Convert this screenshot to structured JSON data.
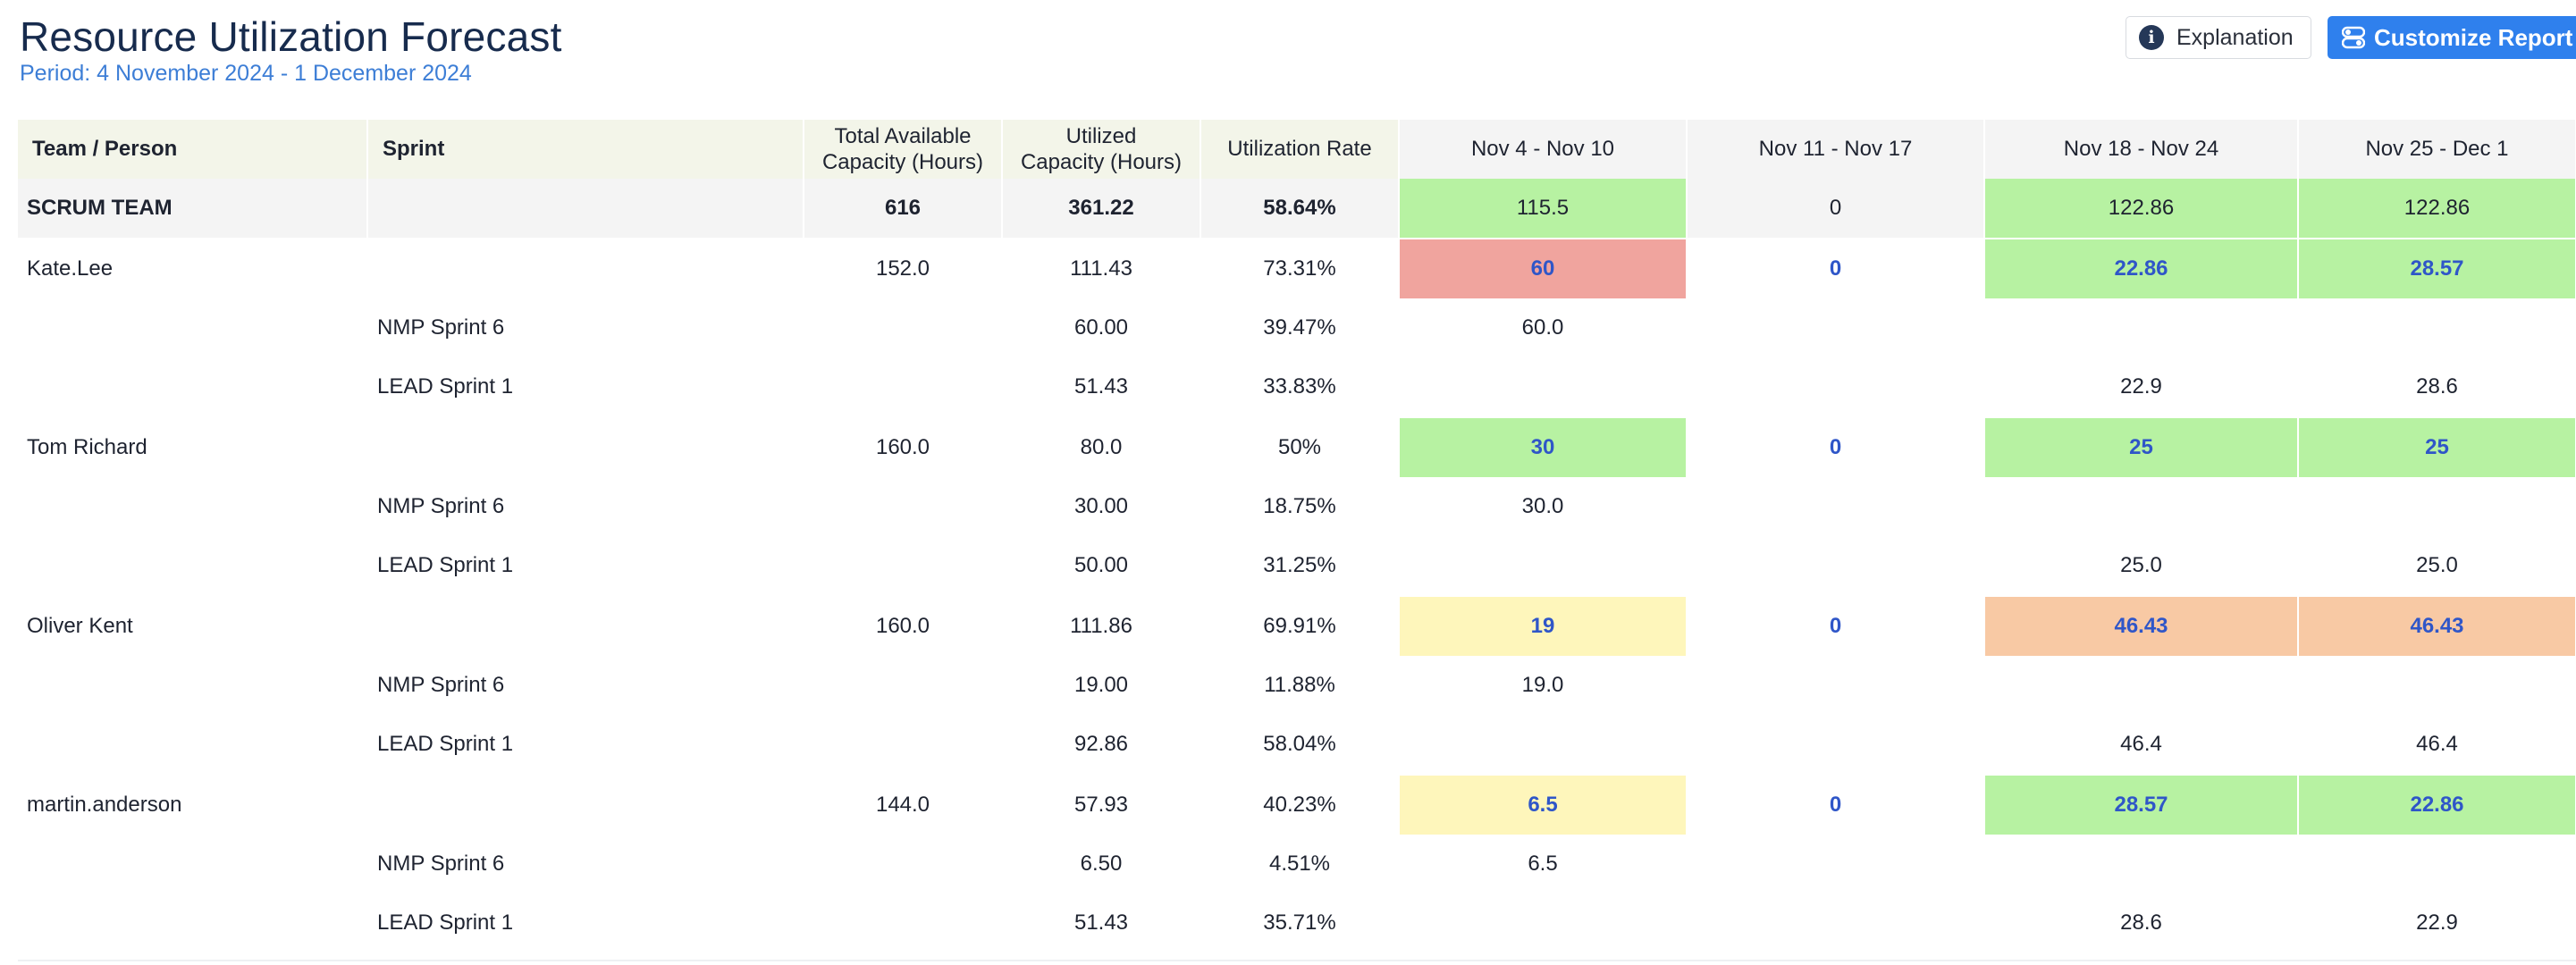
{
  "header": {
    "title": "Resource Utilization Forecast",
    "period": "Period: 4 November 2024 - 1 December 2024",
    "explanation_button": "Explanation",
    "explanation_icon": "info-icon",
    "customize_button": "Customize Report",
    "customize_icon": "toggles-icon"
  },
  "table": {
    "columns": {
      "team_person": "Team / Person",
      "sprint": "Sprint",
      "total_available_line1": "Total Available",
      "total_available_line2": "Capacity (Hours)",
      "utilized_line1": "Utilized",
      "utilized_line2": "Capacity (Hours)",
      "utilization_rate": "Utilization Rate",
      "week1": "Nov 4 - Nov 10",
      "week2": "Nov 11 - Nov 17",
      "week3": "Nov 18 - Nov 24",
      "week4": "Nov 25 - Dec 1"
    },
    "team": {
      "name": "SCRUM TEAM",
      "total": "616",
      "utilized": "361.22",
      "rate": "58.64%",
      "w1": "115.5",
      "w2": "0",
      "w3": "122.86",
      "w4": "122.86"
    },
    "people": [
      {
        "name": "Kate.Lee",
        "total": "152.0",
        "utilized": "111.43",
        "rate": "73.31%",
        "w1": "60",
        "w2": "0",
        "w3": "22.86",
        "w4": "28.57",
        "sprints": [
          {
            "sprint": "NMP Sprint 6",
            "utilized": "60.00",
            "rate": "39.47%",
            "w1": "60.0",
            "w2": "",
            "w3": "",
            "w4": ""
          },
          {
            "sprint": "LEAD Sprint 1",
            "utilized": "51.43",
            "rate": "33.83%",
            "w1": "",
            "w2": "",
            "w3": "22.9",
            "w4": "28.6"
          }
        ]
      },
      {
        "name": "Tom Richard",
        "total": "160.0",
        "utilized": "80.0",
        "rate": "50%",
        "w1": "30",
        "w2": "0",
        "w3": "25",
        "w4": "25",
        "sprints": [
          {
            "sprint": "NMP Sprint 6",
            "utilized": "30.00",
            "rate": "18.75%",
            "w1": "30.0",
            "w2": "",
            "w3": "",
            "w4": ""
          },
          {
            "sprint": "LEAD Sprint 1",
            "utilized": "50.00",
            "rate": "31.25%",
            "w1": "",
            "w2": "",
            "w3": "25.0",
            "w4": "25.0"
          }
        ]
      },
      {
        "name": "Oliver Kent",
        "total": "160.0",
        "utilized": "111.86",
        "rate": "69.91%",
        "w1": "19",
        "w2": "0",
        "w3": "46.43",
        "w4": "46.43",
        "sprints": [
          {
            "sprint": "NMP Sprint 6",
            "utilized": "19.00",
            "rate": "11.88%",
            "w1": "19.0",
            "w2": "",
            "w3": "",
            "w4": ""
          },
          {
            "sprint": "LEAD Sprint 1",
            "utilized": "92.86",
            "rate": "58.04%",
            "w1": "",
            "w2": "",
            "w3": "46.4",
            "w4": "46.4"
          }
        ]
      },
      {
        "name": "martin.anderson",
        "total": "144.0",
        "utilized": "57.93",
        "rate": "40.23%",
        "w1": "6.5",
        "w2": "0",
        "w3": "28.57",
        "w4": "22.86",
        "sprints": [
          {
            "sprint": "NMP Sprint 6",
            "utilized": "6.50",
            "rate": "4.51%",
            "w1": "6.5",
            "w2": "",
            "w3": "",
            "w4": ""
          },
          {
            "sprint": "LEAD Sprint 1",
            "utilized": "51.43",
            "rate": "35.71%",
            "w1": "",
            "w2": "",
            "w3": "28.6",
            "w4": "22.9"
          }
        ]
      }
    ]
  },
  "colors": {
    "title": "#172b4d",
    "period": "#3d7ed6",
    "header_bg": "#f3f5e9",
    "week_header_bg": "#f4f4f4",
    "green": "#b7f2a2",
    "red": "#f0a49e",
    "yellow": "#fef6bb",
    "orange": "#f8c9a4",
    "person_week_text": "#2f56c8",
    "button_primary": "#2f80ed"
  }
}
